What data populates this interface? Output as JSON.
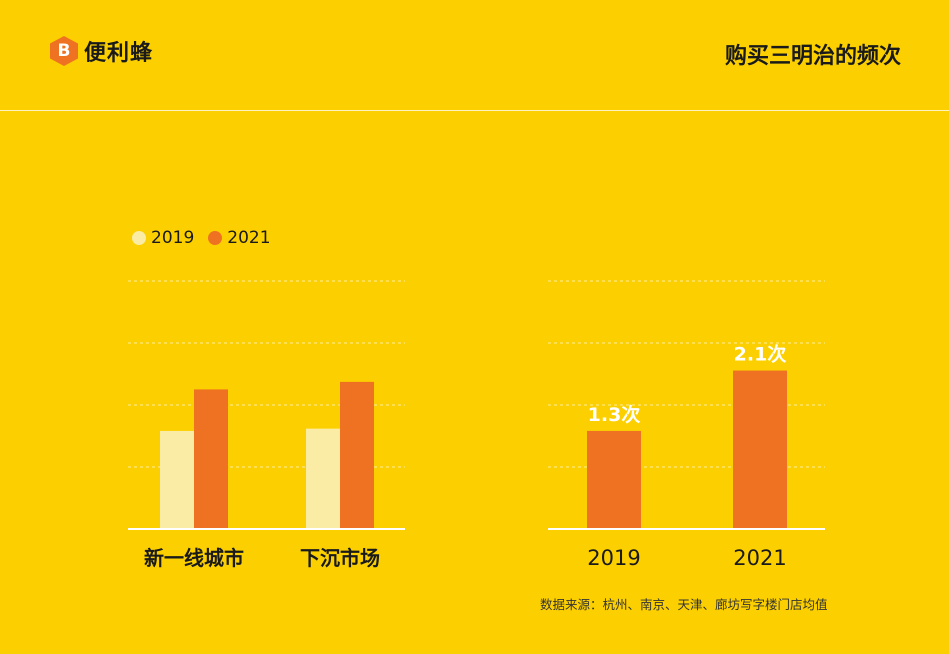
{
  "header": {
    "logo_glyph": "B",
    "logo_text": "便利蜂",
    "title": "购买三明治的频次"
  },
  "colors": {
    "background": "#FCD000",
    "series_2019": "#FAEBA5",
    "series_2021": "#EE7221",
    "axis": "#FFFFFF"
  },
  "legend": {
    "items": [
      {
        "label": "2019",
        "color": "#FAEBA5"
      },
      {
        "label": "2021",
        "color": "#EE7221"
      }
    ]
  },
  "chart_data": [
    {
      "type": "bar",
      "categories": [
        "新一线城市",
        "下沉市场"
      ],
      "series": [
        {
          "name": "2019",
          "values": [
            1.3,
            1.33
          ]
        },
        {
          "name": "2021",
          "values": [
            1.85,
            1.95
          ]
        }
      ],
      "ylim": [
        0,
        3.3
      ],
      "grid": true,
      "legend_position": "top-left"
    },
    {
      "type": "bar",
      "categories": [
        "2019",
        "2021"
      ],
      "values": [
        1.3,
        2.1
      ],
      "data_labels": [
        "1.3次",
        "2.1次"
      ],
      "ylim": [
        0,
        3.3
      ],
      "grid": true
    }
  ],
  "footer": {
    "source": "数据来源：杭州、南京、天津、廊坊写字楼门店均值"
  }
}
